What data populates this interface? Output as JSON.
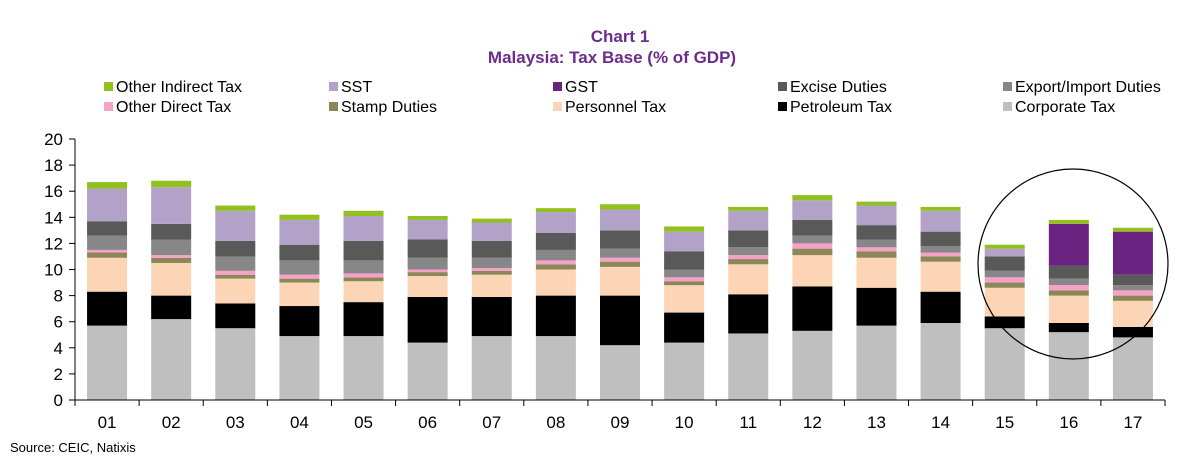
{
  "chart_data": {
    "type": "stacked-bar",
    "title": "Chart 1",
    "subtitle": "Malaysia: Tax Base (% of GDP)",
    "source": "Source: CEIC, Natixis",
    "xlabel": "",
    "ylabel": "",
    "ylim": [
      0,
      20
    ],
    "yticks": [
      "0",
      "2",
      "4",
      "6",
      "8",
      "10",
      "12",
      "14",
      "16",
      "18",
      "20"
    ],
    "grid": false,
    "legend_position": "top",
    "categories": [
      "01",
      "02",
      "03",
      "04",
      "05",
      "06",
      "07",
      "08",
      "09",
      "10",
      "11",
      "12",
      "13",
      "14",
      "15",
      "16",
      "17"
    ],
    "series": [
      {
        "name": "Corporate Tax",
        "color": "#bfbfbf",
        "values": [
          5.7,
          6.2,
          5.5,
          4.9,
          4.9,
          4.4,
          4.9,
          4.9,
          4.2,
          4.4,
          5.1,
          5.3,
          5.7,
          5.9,
          5.5,
          5.2,
          4.8
        ]
      },
      {
        "name": "Petroleum Tax",
        "color": "#000000",
        "values": [
          2.6,
          1.8,
          1.9,
          2.3,
          2.6,
          3.5,
          3.0,
          3.1,
          3.8,
          2.3,
          3.0,
          3.4,
          2.9,
          2.4,
          0.9,
          0.7,
          0.8
        ]
      },
      {
        "name": "Personnel Tax",
        "color": "#fbd5b5",
        "values": [
          2.6,
          2.5,
          1.9,
          1.8,
          1.6,
          1.6,
          1.7,
          2.0,
          2.2,
          2.1,
          2.3,
          2.4,
          2.3,
          2.3,
          2.2,
          2.1,
          2.0
        ]
      },
      {
        "name": "Stamp Duties",
        "color": "#8c8756",
        "values": [
          0.4,
          0.4,
          0.3,
          0.3,
          0.3,
          0.3,
          0.3,
          0.4,
          0.4,
          0.3,
          0.4,
          0.5,
          0.5,
          0.4,
          0.4,
          0.4,
          0.4
        ]
      },
      {
        "name": "Other Direct Tax",
        "color": "#f7a1c9",
        "values": [
          0.2,
          0.2,
          0.3,
          0.3,
          0.3,
          0.2,
          0.2,
          0.3,
          0.3,
          0.3,
          0.3,
          0.4,
          0.3,
          0.3,
          0.4,
          0.4,
          0.4
        ]
      },
      {
        "name": "Export/Import Duties",
        "color": "#878787",
        "values": [
          1.1,
          1.2,
          1.1,
          1.1,
          1.0,
          0.9,
          0.8,
          0.8,
          0.7,
          0.6,
          0.6,
          0.6,
          0.6,
          0.5,
          0.5,
          0.5,
          0.4
        ]
      },
      {
        "name": "Excise Duties",
        "color": "#595959",
        "values": [
          1.1,
          1.2,
          1.2,
          1.2,
          1.5,
          1.4,
          1.3,
          1.3,
          1.4,
          1.4,
          1.3,
          1.2,
          1.1,
          1.1,
          1.1,
          1.0,
          0.8
        ]
      },
      {
        "name": "GST",
        "color": "#6b2180",
        "values": [
          0,
          0,
          0,
          0,
          0,
          0,
          0,
          0,
          0,
          0,
          0,
          0,
          0,
          0,
          0,
          3.2,
          3.3
        ]
      },
      {
        "name": "SST",
        "color": "#b3a2c7",
        "values": [
          2.5,
          2.8,
          2.3,
          1.9,
          1.9,
          1.5,
          1.4,
          1.6,
          1.6,
          1.5,
          1.5,
          1.5,
          1.5,
          1.6,
          0.6,
          0,
          0
        ]
      },
      {
        "name": "Other Indirect Tax",
        "color": "#92c01f",
        "values": [
          0.5,
          0.5,
          0.4,
          0.4,
          0.4,
          0.3,
          0.3,
          0.3,
          0.4,
          0.4,
          0.3,
          0.4,
          0.3,
          0.3,
          0.3,
          0.3,
          0.3
        ]
      }
    ],
    "legend_order": [
      "Other Indirect Tax",
      "SST",
      "GST",
      "Excise Duties",
      "Export/Import Duties",
      "Other Direct Tax",
      "Stamp Duties",
      "Personnel Tax",
      "Petroleum Tax",
      "Corporate Tax"
    ],
    "annotation": {
      "type": "circle",
      "highlights": [
        "15",
        "16",
        "17"
      ]
    }
  }
}
